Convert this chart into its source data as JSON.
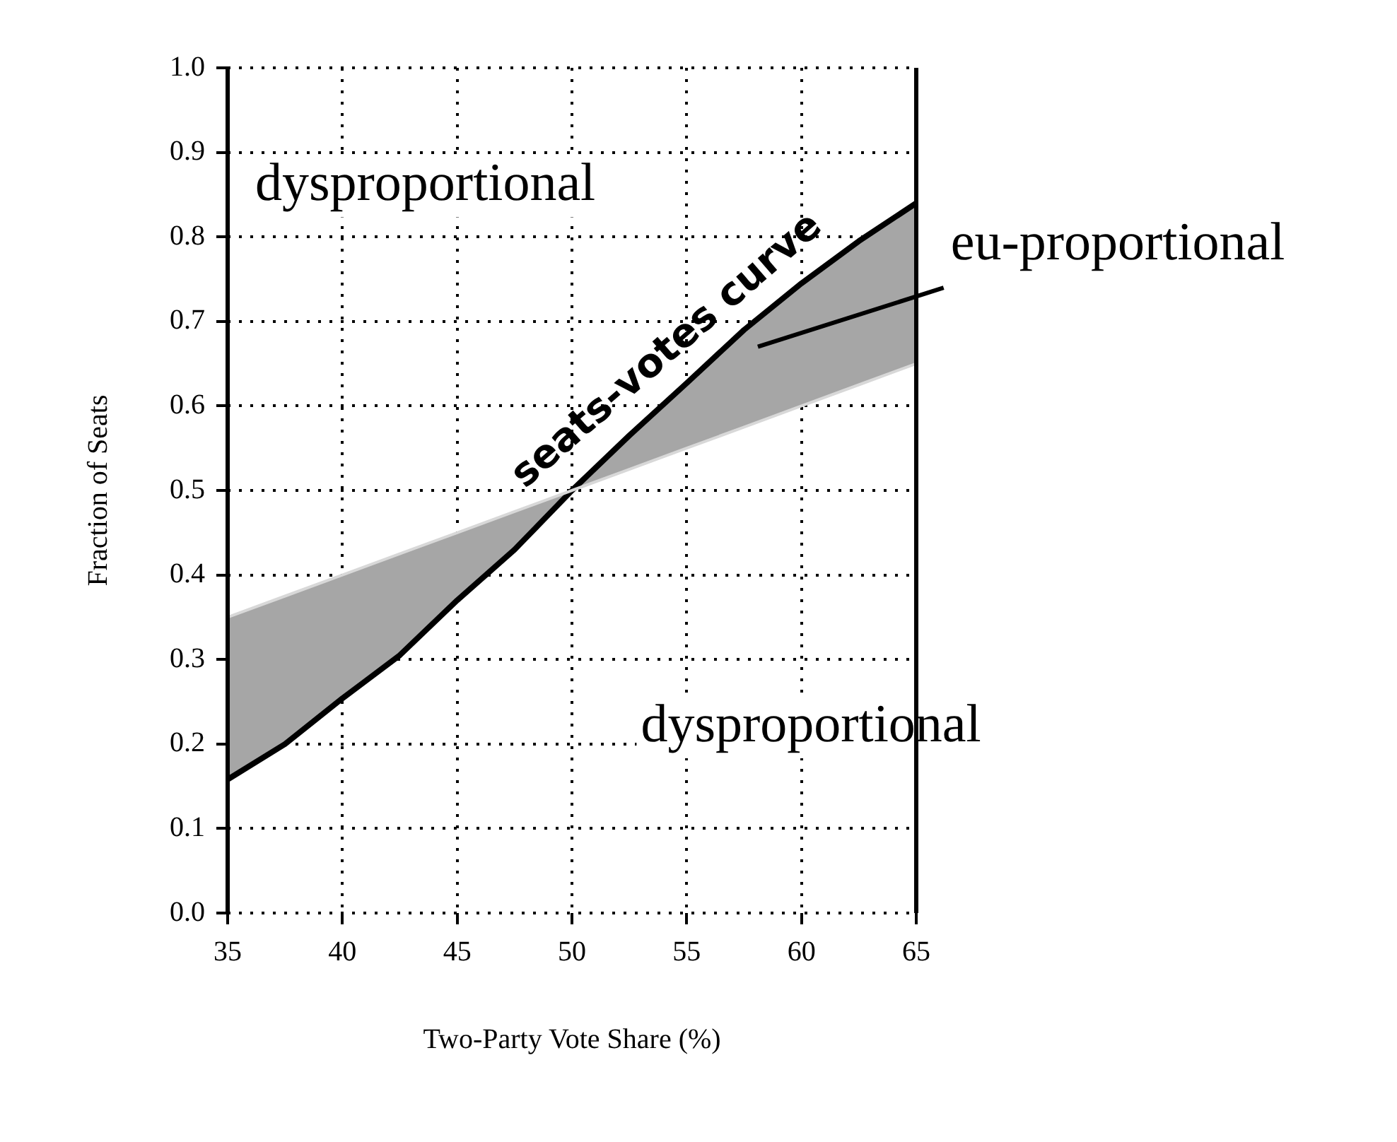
{
  "chart_data": {
    "type": "line",
    "xlabel": "Two-Party Vote Share (%)",
    "ylabel": "Fraction of Seats",
    "x": [
      35,
      37.5,
      40,
      42.5,
      45,
      47.5,
      50,
      52.5,
      55,
      57.5,
      60,
      62.5,
      65
    ],
    "series": [
      {
        "color": "#d8d8d8",
        "values": [
          0.35,
          0.375,
          0.4,
          0.425,
          0.45,
          0.475,
          0.5,
          0.525,
          0.55,
          0.575,
          0.6,
          0.625,
          0.65
        ]
      },
      {
        "name": "seats-votes curve",
        "color": "#000000",
        "values": [
          0.158,
          0.2,
          0.254,
          0.305,
          0.37,
          0.43,
          0.5,
          0.565,
          0.627,
          0.69,
          0.745,
          0.795,
          0.84
        ],
        "lower": [
          0.158,
          0.2,
          0.254,
          0.305,
          0.37,
          0.43,
          0.5,
          0.525,
          0.55,
          0.575,
          0.6,
          0.625,
          0.65
        ],
        "upper": [
          0.35,
          0.375,
          0.4,
          0.425,
          0.45,
          0.475,
          0.5,
          0.565,
          0.627,
          0.69,
          0.745,
          0.795,
          0.84
        ]
      }
    ],
    "xlim": [
      35,
      65
    ],
    "xticks": [
      35,
      40,
      45,
      50,
      55,
      60,
      65
    ],
    "ylim": [
      0,
      1
    ],
    "yticks": [
      {
        "value": 0,
        "label": "0.0"
      },
      {
        "value": 0.1,
        "label": "0.1"
      },
      {
        "value": 0.2,
        "label": "0.2"
      },
      {
        "value": 0.3,
        "label": "0.3"
      },
      {
        "value": 0.4,
        "label": "0.4"
      },
      {
        "value": 0.5,
        "label": "0.5"
      },
      {
        "value": 0.6,
        "label": "0.6"
      },
      {
        "value": 0.7,
        "label": "0.7"
      },
      {
        "value": 0.8,
        "label": "0.8"
      },
      {
        "value": 0.9,
        "label": "0.9"
      },
      {
        "value": 1,
        "label": "1.0"
      }
    ],
    "grid": true,
    "marker": "none",
    "line_style": "solid",
    "annotations": [
      "dysproportional",
      "dysproportional",
      "eu-proportional"
    ]
  }
}
